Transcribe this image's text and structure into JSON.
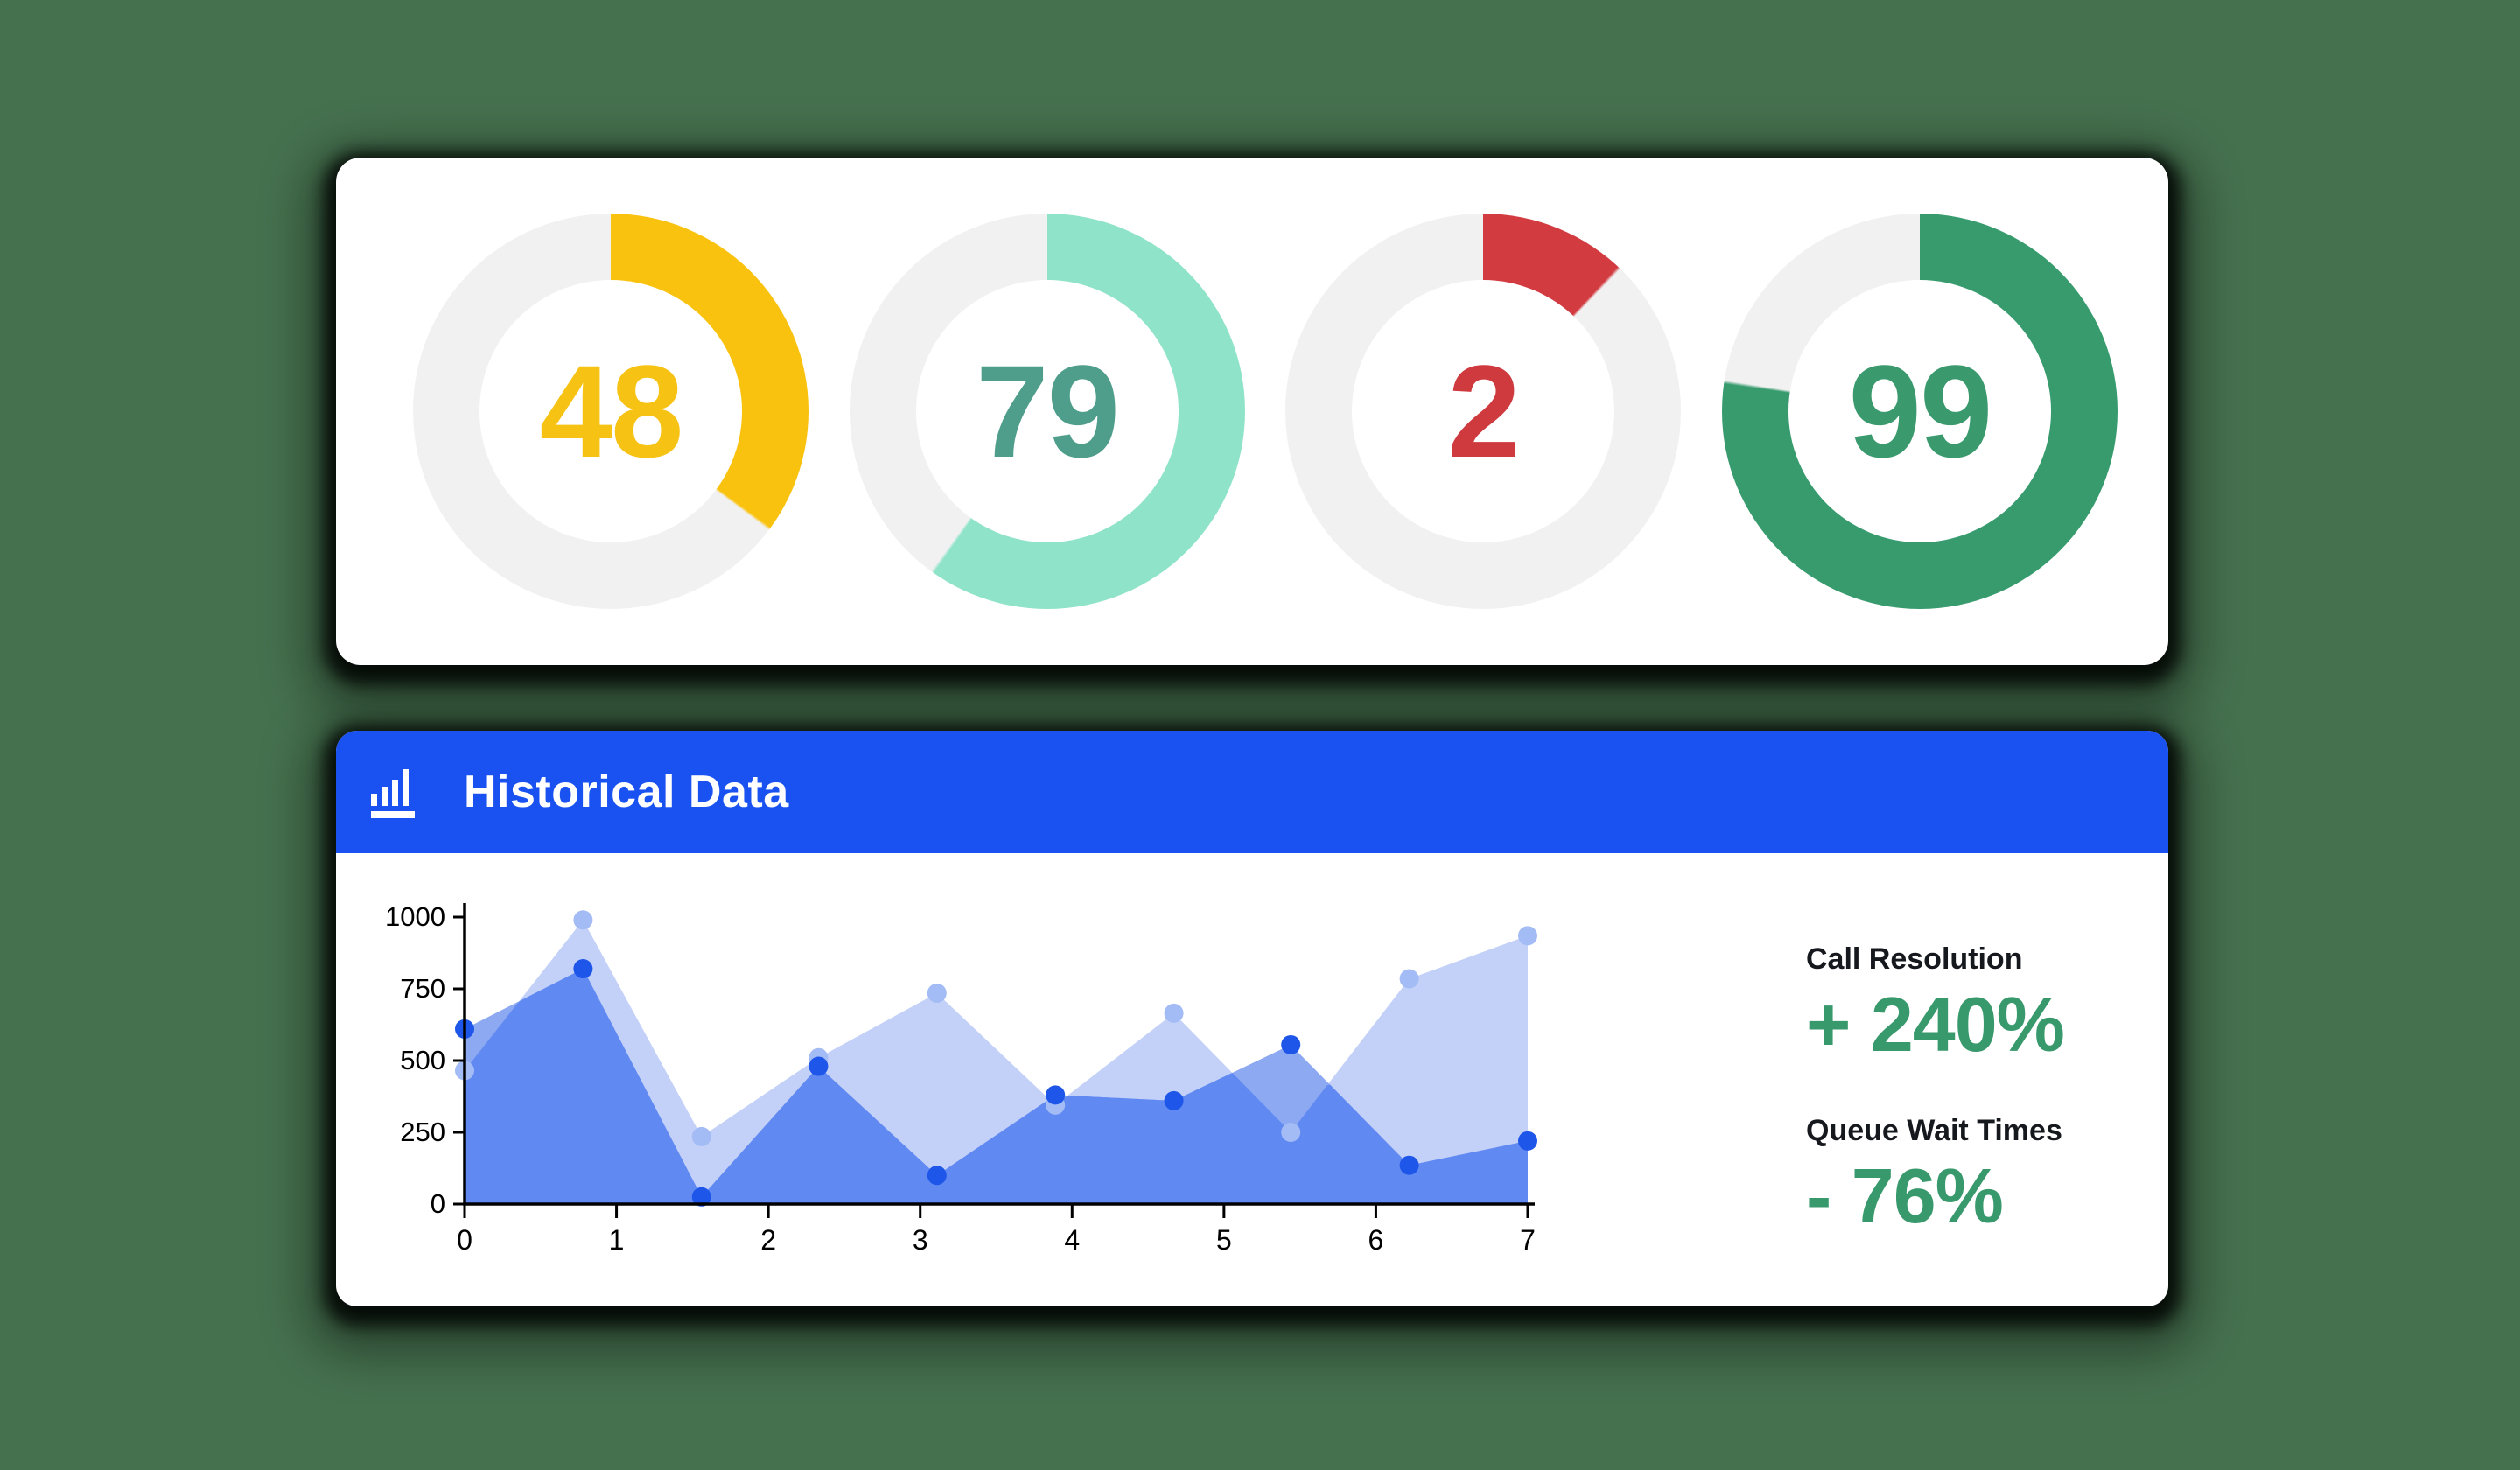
{
  "page": {
    "background_color": "#46714F",
    "card_color": "#FFFFFF"
  },
  "gauges": {
    "track_color": "#F1F1F2",
    "items": [
      {
        "value": "48",
        "arc_degrees": 126,
        "arc_color": "#F9C20E",
        "value_color": "#F6C213"
      },
      {
        "value": "79",
        "arc_degrees": 215,
        "arc_color": "#8FE3C8",
        "value_color": "#4F9D8B"
      },
      {
        "value": "2",
        "arc_degrees": 43,
        "arc_color": "#D23B40",
        "value_color": "#CE3A3E"
      },
      {
        "value": "99",
        "arc_degrees": 278,
        "arc_color": "#379B6E",
        "value_color": "#3A9A6E"
      }
    ]
  },
  "historical": {
    "title": "Historical Data",
    "header_color": "#1A52F2",
    "icon": "bar-chart-icon",
    "stats": [
      {
        "label": "Call Resolution",
        "value": "+ 240%",
        "value_color": "#38996C"
      },
      {
        "label": "Queue Wait Times",
        "value": "- 76%",
        "value_color": "#38996C"
      }
    ]
  },
  "chart_data": [
    {
      "type": "donut",
      "title": "",
      "values": [
        48,
        79,
        2,
        99
      ],
      "arc_degrees": [
        126,
        215,
        43,
        278
      ],
      "colors": [
        "#F9C20E",
        "#8FE3C8",
        "#D23B40",
        "#379B6E"
      ],
      "track_color": "#F1F1F2"
    },
    {
      "type": "area",
      "title": "Historical Data",
      "x": [
        0,
        0.78,
        1.56,
        2.33,
        3.11,
        3.89,
        4.67,
        5.44,
        6.22,
        7
      ],
      "series": [
        {
          "name": "light-series",
          "values": [
            465,
            990,
            235,
            510,
            735,
            345,
            665,
            250,
            785,
            935
          ],
          "fill": "#C3D1F8",
          "dot_color": "#A3BCF5"
        },
        {
          "name": "dark-series",
          "values": [
            610,
            820,
            25,
            480,
            100,
            380,
            360,
            555,
            135,
            220
          ],
          "fill": "#8CA9F1",
          "dot_color": "#1D56E8"
        }
      ],
      "overlap_fill": "#6189F2",
      "xticks": [
        "0",
        "1",
        "2",
        "3",
        "4",
        "5",
        "6",
        "7"
      ],
      "yticks": [
        "0",
        "250",
        "500",
        "750",
        "1000"
      ],
      "xlim": [
        0,
        7
      ],
      "ylim": [
        0,
        1000
      ],
      "grid": false,
      "legend": false,
      "axis_color": "#000000",
      "xlabel": "",
      "ylabel": ""
    }
  ]
}
